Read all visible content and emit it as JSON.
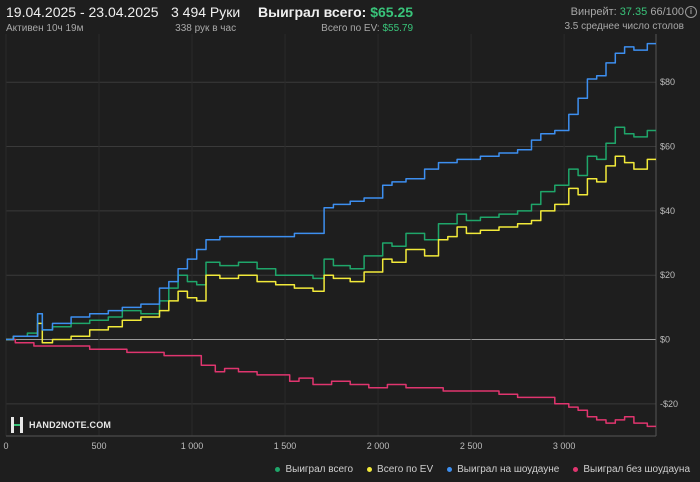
{
  "header": {
    "date_range": "19.04.2025 - 23.04.2025",
    "active_time": "Активен 10ч 19м",
    "hands": "3 494 Руки",
    "hands_per_hour": "338 рук в час",
    "won_label": "Выиграл всего:",
    "won_value": "$65.25",
    "ev_label": "Всего по EV:",
    "ev_value": "$55.79",
    "winrate_label": "Винрейт:",
    "winrate_value": "37.35",
    "winrate_suffix": "66/100",
    "tables_avg": "3.5 среднее число столов",
    "info_icon": "i"
  },
  "logo": {
    "text": "HAND2NOTE.COM"
  },
  "colors": {
    "background": "#1e1e1e",
    "grid": "#3a3a3a",
    "zero_line": "#9a9a9a",
    "green": "#1fa66a",
    "yellow": "#f2ea3a",
    "blue": "#3d8ff0",
    "pink": "#e0356f"
  },
  "chart_data": {
    "type": "line",
    "xlabel": "",
    "ylabel": "",
    "xlim": [
      0,
      3494
    ],
    "ylim": [
      -30,
      95
    ],
    "x_ticks": [
      0,
      500,
      1000,
      1500,
      2000,
      2500,
      3000
    ],
    "x_tick_labels": [
      "0",
      "500",
      "1 000",
      "1 500",
      "2 000",
      "2 500",
      "3 000"
    ],
    "y_ticks": [
      -20,
      0,
      20,
      40,
      60,
      80
    ],
    "y_tick_labels": [
      "-$20",
      "$0",
      "$20",
      "$40",
      "$60",
      "$80"
    ],
    "grid": true,
    "legend_position": "bottom-right",
    "series": [
      {
        "name": "Выиграл всего",
        "color": "#1fa66a",
        "points": [
          [
            0,
            0
          ],
          [
            80,
            1
          ],
          [
            150,
            2
          ],
          [
            190,
            8
          ],
          [
            200,
            3
          ],
          [
            300,
            4
          ],
          [
            400,
            5
          ],
          [
            500,
            6
          ],
          [
            600,
            7
          ],
          [
            650,
            9
          ],
          [
            800,
            8
          ],
          [
            850,
            12
          ],
          [
            900,
            16
          ],
          [
            950,
            20
          ],
          [
            1000,
            18
          ],
          [
            1050,
            17
          ],
          [
            1100,
            24
          ],
          [
            1200,
            23
          ],
          [
            1300,
            24
          ],
          [
            1400,
            22
          ],
          [
            1500,
            20
          ],
          [
            1600,
            20
          ],
          [
            1700,
            19
          ],
          [
            1720,
            25
          ],
          [
            1800,
            23
          ],
          [
            1900,
            22
          ],
          [
            1950,
            26
          ],
          [
            2000,
            26
          ],
          [
            2050,
            30
          ],
          [
            2100,
            29
          ],
          [
            2200,
            33
          ],
          [
            2300,
            31
          ],
          [
            2350,
            36
          ],
          [
            2400,
            36
          ],
          [
            2450,
            39
          ],
          [
            2500,
            37
          ],
          [
            2600,
            38
          ],
          [
            2700,
            39
          ],
          [
            2800,
            40
          ],
          [
            2850,
            42
          ],
          [
            2900,
            46
          ],
          [
            3000,
            48
          ],
          [
            3050,
            53
          ],
          [
            3100,
            51
          ],
          [
            3150,
            57
          ],
          [
            3200,
            56
          ],
          [
            3250,
            61
          ],
          [
            3300,
            66
          ],
          [
            3350,
            64
          ],
          [
            3400,
            63
          ],
          [
            3494,
            65
          ]
        ]
      },
      {
        "name": "Всего по EV",
        "color": "#f2ea3a",
        "points": [
          [
            0,
            0
          ],
          [
            80,
            1
          ],
          [
            150,
            1
          ],
          [
            190,
            5
          ],
          [
            200,
            -1
          ],
          [
            300,
            0
          ],
          [
            400,
            1
          ],
          [
            500,
            3
          ],
          [
            600,
            4
          ],
          [
            650,
            6
          ],
          [
            800,
            7
          ],
          [
            850,
            9
          ],
          [
            900,
            12
          ],
          [
            950,
            15
          ],
          [
            1000,
            13
          ],
          [
            1050,
            12
          ],
          [
            1100,
            20
          ],
          [
            1200,
            19
          ],
          [
            1300,
            20
          ],
          [
            1400,
            18
          ],
          [
            1500,
            17
          ],
          [
            1600,
            16
          ],
          [
            1700,
            15
          ],
          [
            1720,
            20
          ],
          [
            1800,
            19
          ],
          [
            1900,
            18
          ],
          [
            1950,
            21
          ],
          [
            2000,
            21
          ],
          [
            2050,
            25
          ],
          [
            2100,
            24
          ],
          [
            2200,
            28
          ],
          [
            2300,
            26
          ],
          [
            2350,
            31
          ],
          [
            2400,
            32
          ],
          [
            2450,
            35
          ],
          [
            2500,
            33
          ],
          [
            2600,
            34
          ],
          [
            2700,
            35
          ],
          [
            2800,
            36
          ],
          [
            2850,
            37
          ],
          [
            2900,
            40
          ],
          [
            3000,
            42
          ],
          [
            3050,
            47
          ],
          [
            3100,
            45
          ],
          [
            3150,
            50
          ],
          [
            3200,
            49
          ],
          [
            3250,
            54
          ],
          [
            3300,
            57
          ],
          [
            3350,
            55
          ],
          [
            3400,
            53
          ],
          [
            3494,
            56
          ]
        ]
      },
      {
        "name": "Выиграл на шоудауне",
        "color": "#3d8ff0",
        "points": [
          [
            0,
            0
          ],
          [
            80,
            1
          ],
          [
            150,
            1
          ],
          [
            190,
            8
          ],
          [
            200,
            3
          ],
          [
            300,
            5
          ],
          [
            400,
            7
          ],
          [
            500,
            8
          ],
          [
            600,
            9
          ],
          [
            650,
            10
          ],
          [
            800,
            11
          ],
          [
            850,
            16
          ],
          [
            900,
            18
          ],
          [
            950,
            22
          ],
          [
            1000,
            25
          ],
          [
            1050,
            28
          ],
          [
            1100,
            31
          ],
          [
            1200,
            32
          ],
          [
            1300,
            32
          ],
          [
            1400,
            32
          ],
          [
            1500,
            32
          ],
          [
            1600,
            33
          ],
          [
            1700,
            33
          ],
          [
            1720,
            41
          ],
          [
            1800,
            42
          ],
          [
            1900,
            43
          ],
          [
            1950,
            44
          ],
          [
            2000,
            44
          ],
          [
            2050,
            48
          ],
          [
            2100,
            49
          ],
          [
            2200,
            50
          ],
          [
            2300,
            53
          ],
          [
            2350,
            55
          ],
          [
            2400,
            55
          ],
          [
            2450,
            56
          ],
          [
            2500,
            56
          ],
          [
            2600,
            57
          ],
          [
            2700,
            58
          ],
          [
            2800,
            59
          ],
          [
            2850,
            62
          ],
          [
            2900,
            64
          ],
          [
            3000,
            65
          ],
          [
            3050,
            70
          ],
          [
            3100,
            75
          ],
          [
            3150,
            81
          ],
          [
            3200,
            82
          ],
          [
            3250,
            86
          ],
          [
            3300,
            89
          ],
          [
            3350,
            91
          ],
          [
            3400,
            90
          ],
          [
            3494,
            92
          ]
        ]
      },
      {
        "name": "Выиграл без шоудауна",
        "color": "#e0356f",
        "points": [
          [
            0,
            0
          ],
          [
            100,
            -1
          ],
          [
            200,
            -2
          ],
          [
            300,
            -2
          ],
          [
            400,
            -2
          ],
          [
            500,
            -3
          ],
          [
            600,
            -3
          ],
          [
            700,
            -4
          ],
          [
            800,
            -4
          ],
          [
            900,
            -5
          ],
          [
            1000,
            -5
          ],
          [
            1100,
            -8
          ],
          [
            1150,
            -10
          ],
          [
            1200,
            -9
          ],
          [
            1300,
            -10
          ],
          [
            1400,
            -11
          ],
          [
            1500,
            -11
          ],
          [
            1550,
            -13
          ],
          [
            1600,
            -12
          ],
          [
            1700,
            -14
          ],
          [
            1800,
            -13
          ],
          [
            1900,
            -14
          ],
          [
            2000,
            -15
          ],
          [
            2100,
            -14
          ],
          [
            2200,
            -15
          ],
          [
            2300,
            -15
          ],
          [
            2400,
            -16
          ],
          [
            2500,
            -16
          ],
          [
            2600,
            -16
          ],
          [
            2700,
            -17
          ],
          [
            2800,
            -18
          ],
          [
            2900,
            -18
          ],
          [
            3000,
            -20
          ],
          [
            3050,
            -21
          ],
          [
            3100,
            -22
          ],
          [
            3150,
            -24
          ],
          [
            3200,
            -25
          ],
          [
            3250,
            -26
          ],
          [
            3300,
            -25
          ],
          [
            3350,
            -24
          ],
          [
            3400,
            -26
          ],
          [
            3494,
            -27
          ]
        ]
      }
    ]
  }
}
